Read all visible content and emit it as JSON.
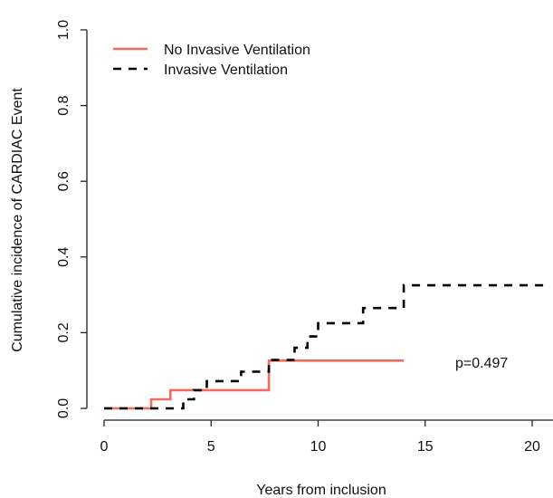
{
  "chart_data": {
    "type": "line",
    "xlabel": "Years from inclusion",
    "ylabel": "Cumulative incidence of CARDIAC Event",
    "xlim": [
      0,
      20.7
    ],
    "ylim": [
      0,
      1.0
    ],
    "x_ticks": [
      0,
      5,
      10,
      15,
      20
    ],
    "y_ticks": [
      0.0,
      0.2,
      0.4,
      0.6,
      0.8,
      1.0
    ],
    "x_tick_labels": [
      "0",
      "5",
      "10",
      "15",
      "20"
    ],
    "y_tick_labels": [
      "0.0",
      "0.2",
      "0.4",
      "0.6",
      "0.8",
      "1.0"
    ],
    "step": true,
    "legend_position": "top-left",
    "annotation": "p=0.497",
    "series": [
      {
        "name": "No Invasive Ventilation",
        "color": "#f26b5b",
        "dash": "solid",
        "points": [
          [
            0,
            0.0
          ],
          [
            2.2,
            0.0
          ],
          [
            2.2,
            0.024
          ],
          [
            3.1,
            0.024
          ],
          [
            3.1,
            0.048
          ],
          [
            7.7,
            0.048
          ],
          [
            7.7,
            0.126
          ],
          [
            14.0,
            0.126
          ]
        ]
      },
      {
        "name": "Invasive Ventilation",
        "color": "#000000",
        "dash": "dashed",
        "points": [
          [
            0,
            0.0
          ],
          [
            3.7,
            0.0
          ],
          [
            3.7,
            0.024
          ],
          [
            4.2,
            0.024
          ],
          [
            4.2,
            0.048
          ],
          [
            4.8,
            0.048
          ],
          [
            4.8,
            0.072
          ],
          [
            6.4,
            0.072
          ],
          [
            6.4,
            0.097
          ],
          [
            7.7,
            0.097
          ],
          [
            7.7,
            0.128
          ],
          [
            8.9,
            0.128
          ],
          [
            8.9,
            0.16
          ],
          [
            9.5,
            0.16
          ],
          [
            9.5,
            0.19
          ],
          [
            10.0,
            0.19
          ],
          [
            10.0,
            0.225
          ],
          [
            12.1,
            0.225
          ],
          [
            12.1,
            0.265
          ],
          [
            14.0,
            0.265
          ],
          [
            14.0,
            0.325
          ],
          [
            20.7,
            0.325
          ]
        ]
      }
    ]
  }
}
